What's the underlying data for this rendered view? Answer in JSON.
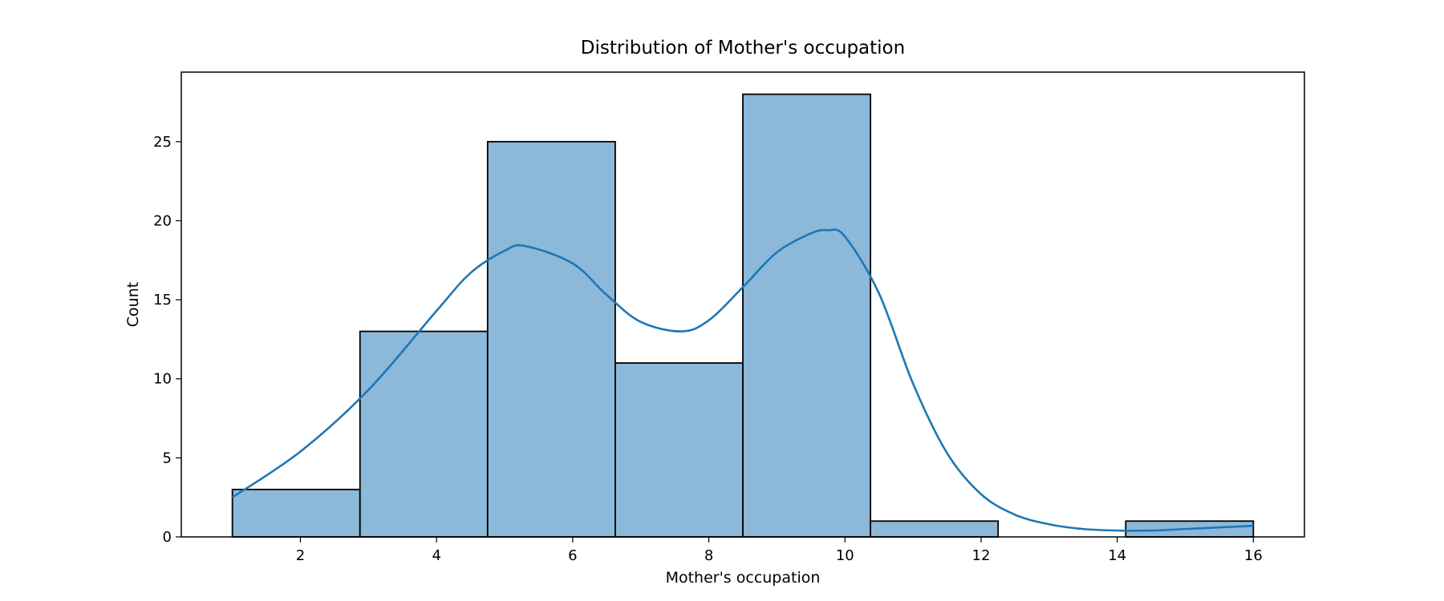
{
  "chart_data": {
    "type": "bar",
    "title": "Distribution of Mother's occupation",
    "xlabel": "Mother's occupation",
    "ylabel": "Count",
    "bins": [
      {
        "x0": 1.0,
        "x1": 2.875,
        "count": 3
      },
      {
        "x0": 2.875,
        "x1": 4.75,
        "count": 13
      },
      {
        "x0": 4.75,
        "x1": 6.625,
        "count": 25
      },
      {
        "x0": 6.625,
        "x1": 8.5,
        "count": 11
      },
      {
        "x0": 8.5,
        "x1": 10.375,
        "count": 28
      },
      {
        "x0": 10.375,
        "x1": 12.25,
        "count": 1
      },
      {
        "x0": 12.25,
        "x1": 14.125,
        "count": 0
      },
      {
        "x0": 14.125,
        "x1": 16.0,
        "count": 1
      }
    ],
    "kde": {
      "x": [
        1,
        2,
        3,
        4,
        4.5,
        5,
        5.3,
        6,
        6.5,
        7,
        7.6,
        8,
        8.5,
        9,
        9.5,
        9.75,
        10,
        10.5,
        11,
        11.5,
        12,
        12.5,
        13,
        13.5,
        14,
        14.5,
        15,
        15.5,
        16
      ],
      "y": [
        2.5,
        5.4,
        9.3,
        14.3,
        16.7,
        18.1,
        18.4,
        17.3,
        15.3,
        13.6,
        13.0,
        13.7,
        15.8,
        18.0,
        19.2,
        19.4,
        19.0,
        15.4,
        9.7,
        5.3,
        2.7,
        1.4,
        0.8,
        0.5,
        0.4,
        0.4,
        0.5,
        0.6,
        0.7
      ]
    },
    "xlim": [
      0.25,
      16.75
    ],
    "ylim": [
      0,
      29.4
    ],
    "xticks": [
      2,
      4,
      6,
      8,
      10,
      12,
      14,
      16
    ],
    "yticks": [
      0,
      5,
      10,
      15,
      20,
      25
    ],
    "bar_color": "#8cb8da",
    "edge_color": "#000000",
    "kde_color": "#1f77b4",
    "grid": false,
    "legend": "none"
  }
}
